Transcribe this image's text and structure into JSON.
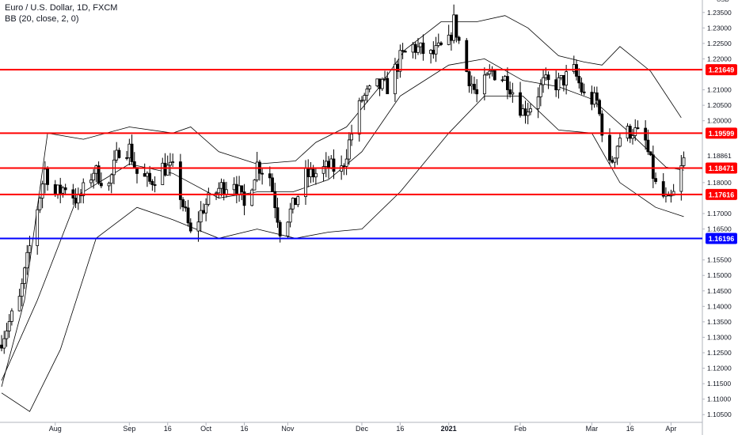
{
  "header": {
    "title": "Euro / U.S. Dollar, 1D, FXCM",
    "indicator": "BB (20, close, 2, 0)"
  },
  "chart_data": {
    "type": "candlestick",
    "currency": "USD",
    "ylim": [
      1.1,
      1.24
    ],
    "y_ticks": [
      "1.10500",
      "1.11000",
      "1.11500",
      "1.12000",
      "1.12500",
      "1.13000",
      "1.13500",
      "1.14000",
      "1.14500",
      "1.15000",
      "1.15500",
      "1.16000",
      "1.16500",
      "1.17000",
      "1.17500",
      "1.18000",
      "1.18500",
      "1.19000",
      "1.19500",
      "1.20000",
      "1.20500",
      "1.21000",
      "1.21500",
      "1.22000",
      "1.22500",
      "1.23000",
      "1.23500"
    ],
    "top_tick": "1.",
    "x_ticks": [
      {
        "label": "Aug",
        "date": "2020-08-03"
      },
      {
        "label": "Sep",
        "date": "2020-09-01"
      },
      {
        "label": "16",
        "date": "2020-09-16"
      },
      {
        "label": "Oct",
        "date": "2020-10-01"
      },
      {
        "label": "16",
        "date": "2020-10-16"
      },
      {
        "label": "Nov",
        "date": "2020-11-02"
      },
      {
        "label": "Dec",
        "date": "2020-12-01"
      },
      {
        "label": "16",
        "date": "2020-12-16"
      },
      {
        "label": "2021",
        "date": "2021-01-04"
      },
      {
        "label": "Feb",
        "date": "2021-02-01"
      },
      {
        "label": "Mar",
        "date": "2021-03-01"
      },
      {
        "label": "16",
        "date": "2021-03-16"
      },
      {
        "label": "Apr",
        "date": "2021-04-01"
      }
    ],
    "x_range": [
      "2020-07-13",
      "2021-04-08"
    ],
    "horizontal_levels": [
      {
        "value": 1.21649,
        "label": "1.21649",
        "color": "#ff0000"
      },
      {
        "value": 1.19599,
        "label": "1.19599",
        "color": "#ff0000"
      },
      {
        "value": 1.18471,
        "label": "1.18471",
        "color": "#ff0000"
      },
      {
        "value": 1.17616,
        "label": "1.17616",
        "color": "#ff0000"
      },
      {
        "value": 1.16196,
        "label": "1.16196",
        "color": "#0000ff"
      }
    ],
    "last_price": {
      "value": 1.18861,
      "label": "1.18861"
    },
    "close_series": [
      {
        "date": "2020-07-13",
        "close": 1.1295
      },
      {
        "date": "2020-07-20",
        "close": 1.142
      },
      {
        "date": "2020-07-27",
        "close": 1.172
      },
      {
        "date": "2020-07-30",
        "close": 1.184
      },
      {
        "date": "2020-08-03",
        "close": 1.176
      },
      {
        "date": "2020-08-07",
        "close": 1.179
      },
      {
        "date": "2020-08-12",
        "close": 1.174
      },
      {
        "date": "2020-08-18",
        "close": 1.184
      },
      {
        "date": "2020-08-24",
        "close": 1.179
      },
      {
        "date": "2020-08-28",
        "close": 1.191
      },
      {
        "date": "2020-09-01",
        "close": 1.191
      },
      {
        "date": "2020-09-04",
        "close": 1.183
      },
      {
        "date": "2020-09-09",
        "close": 1.18
      },
      {
        "date": "2020-09-14",
        "close": 1.185
      },
      {
        "date": "2020-09-18",
        "close": 1.184
      },
      {
        "date": "2020-09-21",
        "close": 1.176
      },
      {
        "date": "2020-09-25",
        "close": 1.163
      },
      {
        "date": "2020-09-30",
        "close": 1.172
      },
      {
        "date": "2020-10-06",
        "close": 1.178
      },
      {
        "date": "2020-10-12",
        "close": 1.181
      },
      {
        "date": "2020-10-16",
        "close": 1.172
      },
      {
        "date": "2020-10-21",
        "close": 1.186
      },
      {
        "date": "2020-10-26",
        "close": 1.182
      },
      {
        "date": "2020-10-30",
        "close": 1.165
      },
      {
        "date": "2020-11-04",
        "close": 1.172
      },
      {
        "date": "2020-11-09",
        "close": 1.182
      },
      {
        "date": "2020-11-13",
        "close": 1.183
      },
      {
        "date": "2020-11-18",
        "close": 1.185
      },
      {
        "date": "2020-11-23",
        "close": 1.184
      },
      {
        "date": "2020-11-27",
        "close": 1.196
      },
      {
        "date": "2020-12-01",
        "close": 1.207
      },
      {
        "date": "2020-12-07",
        "close": 1.211
      },
      {
        "date": "2020-12-11",
        "close": 1.211
      },
      {
        "date": "2020-12-16",
        "close": 1.22
      },
      {
        "date": "2020-12-21",
        "close": 1.224
      },
      {
        "date": "2020-12-28",
        "close": 1.221
      },
      {
        "date": "2021-01-04",
        "close": 1.225
      },
      {
        "date": "2021-01-06",
        "close": 1.232
      },
      {
        "date": "2021-01-11",
        "close": 1.216
      },
      {
        "date": "2021-01-15",
        "close": 1.208
      },
      {
        "date": "2021-01-21",
        "close": 1.216
      },
      {
        "date": "2021-01-27",
        "close": 1.213
      },
      {
        "date": "2021-02-02",
        "close": 1.203
      },
      {
        "date": "2021-02-05",
        "close": 1.205
      },
      {
        "date": "2021-02-10",
        "close": 1.212
      },
      {
        "date": "2021-02-16",
        "close": 1.212
      },
      {
        "date": "2021-02-22",
        "close": 1.216
      },
      {
        "date": "2021-02-26",
        "close": 1.208
      },
      {
        "date": "2021-03-03",
        "close": 1.206
      },
      {
        "date": "2021-03-08",
        "close": 1.185
      },
      {
        "date": "2021-03-12",
        "close": 1.195
      },
      {
        "date": "2021-03-17",
        "close": 1.197
      },
      {
        "date": "2021-03-22",
        "close": 1.193
      },
      {
        "date": "2021-03-26",
        "close": 1.179
      },
      {
        "date": "2021-03-31",
        "close": 1.173
      },
      {
        "date": "2021-04-02",
        "close": 1.176
      },
      {
        "date": "2021-04-06",
        "close": 1.187
      }
    ],
    "bollinger": {
      "period": 20,
      "upper": [
        {
          "date": "2020-07-13",
          "value": 1.114
        },
        {
          "date": "2020-07-22",
          "value": 1.142
        },
        {
          "date": "2020-07-31",
          "value": 1.196
        },
        {
          "date": "2020-08-14",
          "value": 1.194
        },
        {
          "date": "2020-09-01",
          "value": 1.198
        },
        {
          "date": "2020-09-18",
          "value": 1.196
        },
        {
          "date": "2020-09-25",
          "value": 1.198
        },
        {
          "date": "2020-10-06",
          "value": 1.19
        },
        {
          "date": "2020-10-21",
          "value": 1.186
        },
        {
          "date": "2020-11-05",
          "value": 1.187
        },
        {
          "date": "2020-11-13",
          "value": 1.193
        },
        {
          "date": "2020-11-25",
          "value": 1.198
        },
        {
          "date": "2020-12-07",
          "value": 1.21
        },
        {
          "date": "2020-12-18",
          "value": 1.223
        },
        {
          "date": "2021-01-01",
          "value": 1.232
        },
        {
          "date": "2021-01-15",
          "value": 1.232
        },
        {
          "date": "2021-01-26",
          "value": 1.234
        },
        {
          "date": "2021-02-04",
          "value": 1.23
        },
        {
          "date": "2021-02-16",
          "value": 1.221
        },
        {
          "date": "2021-02-26",
          "value": 1.219
        },
        {
          "date": "2021-03-05",
          "value": 1.218
        },
        {
          "date": "2021-03-12",
          "value": 1.224
        },
        {
          "date": "2021-03-24",
          "value": 1.216
        },
        {
          "date": "2021-04-05",
          "value": 1.201
        }
      ],
      "middle": [
        {
          "date": "2020-07-13",
          "value": 1.116
        },
        {
          "date": "2020-07-27",
          "value": 1.142
        },
        {
          "date": "2020-08-12",
          "value": 1.176
        },
        {
          "date": "2020-09-01",
          "value": 1.186
        },
        {
          "date": "2020-09-18",
          "value": 1.183
        },
        {
          "date": "2020-10-06",
          "value": 1.175
        },
        {
          "date": "2020-10-21",
          "value": 1.177
        },
        {
          "date": "2020-11-04",
          "value": 1.177
        },
        {
          "date": "2020-11-18",
          "value": 1.181
        },
        {
          "date": "2020-12-01",
          "value": 1.19
        },
        {
          "date": "2020-12-16",
          "value": 1.208
        },
        {
          "date": "2021-01-04",
          "value": 1.218
        },
        {
          "date": "2021-01-18",
          "value": 1.22
        },
        {
          "date": "2021-02-02",
          "value": 1.213
        },
        {
          "date": "2021-02-16",
          "value": 1.211
        },
        {
          "date": "2021-03-01",
          "value": 1.207
        },
        {
          "date": "2021-03-16",
          "value": 1.196
        },
        {
          "date": "2021-03-30",
          "value": 1.185
        },
        {
          "date": "2021-04-06",
          "value": 1.184
        }
      ],
      "lower": [
        {
          "date": "2020-07-13",
          "value": 1.112
        },
        {
          "date": "2020-07-24",
          "value": 1.106
        },
        {
          "date": "2020-08-05",
          "value": 1.126
        },
        {
          "date": "2020-08-19",
          "value": 1.162
        },
        {
          "date": "2020-09-04",
          "value": 1.172
        },
        {
          "date": "2020-09-18",
          "value": 1.168
        },
        {
          "date": "2020-10-06",
          "value": 1.162
        },
        {
          "date": "2020-10-21",
          "value": 1.165
        },
        {
          "date": "2020-11-05",
          "value": 1.162
        },
        {
          "date": "2020-11-18",
          "value": 1.164
        },
        {
          "date": "2020-12-01",
          "value": 1.165
        },
        {
          "date": "2020-12-16",
          "value": 1.177
        },
        {
          "date": "2021-01-04",
          "value": 1.196
        },
        {
          "date": "2021-01-18",
          "value": 1.208
        },
        {
          "date": "2021-02-02",
          "value": 1.208
        },
        {
          "date": "2021-02-16",
          "value": 1.197
        },
        {
          "date": "2021-03-01",
          "value": 1.196
        },
        {
          "date": "2021-03-12",
          "value": 1.18
        },
        {
          "date": "2021-03-26",
          "value": 1.172
        },
        {
          "date": "2021-04-06",
          "value": 1.169
        }
      ]
    }
  }
}
